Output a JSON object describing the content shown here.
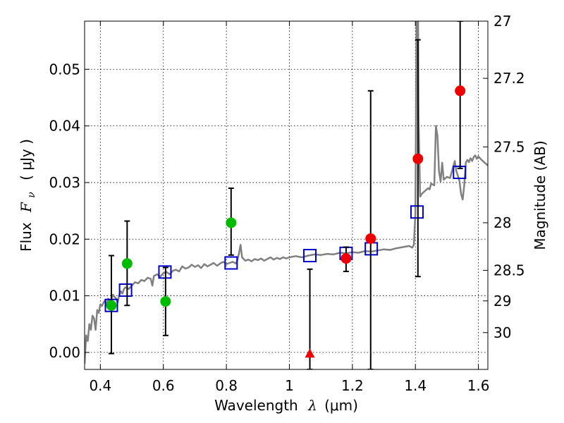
{
  "chart_data": {
    "type": "scatter",
    "xlabel_prefix": "Wavelength",
    "xlabel_symbol": "λ",
    "xlabel_unit": "(μm)",
    "ylabel_prefix": "Flux",
    "ylabel_symbol": "F",
    "ylabel_subscript": "ν",
    "ylabel_unit": "( μJy )",
    "y2label": "Magnitude (AB)",
    "xlim": [
      0.35,
      1.63
    ],
    "ylim": [
      -0.003,
      0.0585
    ],
    "grid": true,
    "x_ticks": [
      {
        "value": 0.4,
        "label": "0.4"
      },
      {
        "value": 0.6,
        "label": "0.6"
      },
      {
        "value": 0.8,
        "label": "0.8"
      },
      {
        "value": 1.0,
        "label": "1"
      },
      {
        "value": 1.2,
        "label": "1.2"
      },
      {
        "value": 1.4,
        "label": "1.4"
      },
      {
        "value": 1.6,
        "label": "1.6"
      }
    ],
    "y_ticks": [
      {
        "value": 0.0,
        "label": "0.00"
      },
      {
        "value": 0.01,
        "label": "0.01"
      },
      {
        "value": 0.02,
        "label": "0.02"
      },
      {
        "value": 0.03,
        "label": "0.03"
      },
      {
        "value": 0.04,
        "label": "0.04"
      },
      {
        "value": 0.05,
        "label": "0.05"
      }
    ],
    "y2_ticks": [
      {
        "flux": 0.0585,
        "label": "27"
      },
      {
        "flux": 0.0484,
        "label": "27.2"
      },
      {
        "flux": 0.0363,
        "label": "27.5"
      },
      {
        "flux": 0.0229,
        "label": "28"
      },
      {
        "flux": 0.0145,
        "label": "28.5"
      },
      {
        "flux": 0.0091,
        "label": "29"
      },
      {
        "flux": 0.0035,
        "label": "30"
      }
    ],
    "series": [
      {
        "kind": "model_spectrum",
        "color": "#808080",
        "points": [
          [
            0.35,
            -0.002
          ],
          [
            0.355,
            0.003
          ],
          [
            0.36,
            0.002
          ],
          [
            0.365,
            0.005
          ],
          [
            0.37,
            0.004
          ],
          [
            0.375,
            0.0065
          ],
          [
            0.38,
            0.006
          ],
          [
            0.385,
            0.004
          ],
          [
            0.39,
            0.0075
          ],
          [
            0.395,
            0.007
          ],
          [
            0.4,
            0.0085
          ],
          [
            0.405,
            0.0082
          ],
          [
            0.41,
            0.0088
          ],
          [
            0.415,
            0.0092
          ],
          [
            0.42,
            0.0084
          ],
          [
            0.425,
            0.0095
          ],
          [
            0.43,
            0.009
          ],
          [
            0.435,
            0.0094
          ],
          [
            0.44,
            0.0102
          ],
          [
            0.445,
            0.0098
          ],
          [
            0.45,
            0.0095
          ],
          [
            0.455,
            0.0088
          ],
          [
            0.46,
            0.0102
          ],
          [
            0.465,
            0.0108
          ],
          [
            0.47,
            0.0104
          ],
          [
            0.475,
            0.0112
          ],
          [
            0.48,
            0.0115
          ],
          [
            0.49,
            0.0112
          ],
          [
            0.5,
            0.0118
          ],
          [
            0.51,
            0.0124
          ],
          [
            0.52,
            0.0122
          ],
          [
            0.53,
            0.0128
          ],
          [
            0.54,
            0.0126
          ],
          [
            0.55,
            0.0132
          ],
          [
            0.56,
            0.013
          ],
          [
            0.565,
            0.0118
          ],
          [
            0.57,
            0.0135
          ],
          [
            0.58,
            0.0138
          ],
          [
            0.59,
            0.0134
          ],
          [
            0.6,
            0.014
          ],
          [
            0.61,
            0.0142
          ],
          [
            0.62,
            0.0138
          ],
          [
            0.63,
            0.0144
          ],
          [
            0.64,
            0.0146
          ],
          [
            0.65,
            0.0143
          ],
          [
            0.66,
            0.0152
          ],
          [
            0.67,
            0.0148
          ],
          [
            0.68,
            0.015
          ],
          [
            0.69,
            0.0155
          ],
          [
            0.7,
            0.0151
          ],
          [
            0.71,
            0.0154
          ],
          [
            0.72,
            0.0149
          ],
          [
            0.73,
            0.0156
          ],
          [
            0.74,
            0.0152
          ],
          [
            0.75,
            0.0155
          ],
          [
            0.76,
            0.0158
          ],
          [
            0.77,
            0.0153
          ],
          [
            0.78,
            0.0157
          ],
          [
            0.79,
            0.016
          ],
          [
            0.8,
            0.0156
          ],
          [
            0.81,
            0.0158
          ],
          [
            0.82,
            0.016
          ],
          [
            0.83,
            0.0157
          ],
          [
            0.835,
            0.0163
          ],
          [
            0.84,
            0.0175
          ],
          [
            0.845,
            0.019
          ],
          [
            0.85,
            0.0168
          ],
          [
            0.86,
            0.0162
          ],
          [
            0.87,
            0.0164
          ],
          [
            0.88,
            0.0161
          ],
          [
            0.89,
            0.0165
          ],
          [
            0.9,
            0.0163
          ],
          [
            0.91,
            0.0166
          ],
          [
            0.92,
            0.0162
          ],
          [
            0.93,
            0.0165
          ],
          [
            0.94,
            0.0168
          ],
          [
            0.95,
            0.0164
          ],
          [
            0.96,
            0.0167
          ],
          [
            0.97,
            0.0165
          ],
          [
            0.98,
            0.0168
          ],
          [
            0.99,
            0.0166
          ],
          [
            1.0,
            0.0168
          ],
          [
            1.02,
            0.017
          ],
          [
            1.04,
            0.0168
          ],
          [
            1.06,
            0.0171
          ],
          [
            1.08,
            0.0173
          ],
          [
            1.1,
            0.0172
          ],
          [
            1.12,
            0.0174
          ],
          [
            1.14,
            0.0173
          ],
          [
            1.16,
            0.0176
          ],
          [
            1.18,
            0.0175
          ],
          [
            1.2,
            0.0177
          ],
          [
            1.22,
            0.0176
          ],
          [
            1.24,
            0.0179
          ],
          [
            1.26,
            0.0178
          ],
          [
            1.28,
            0.018
          ],
          [
            1.3,
            0.0182
          ],
          [
            1.32,
            0.0181
          ],
          [
            1.34,
            0.0184
          ],
          [
            1.36,
            0.0186
          ],
          [
            1.38,
            0.0188
          ],
          [
            1.39,
            0.0185
          ],
          [
            1.395,
            0.019
          ],
          [
            1.4,
            0.0245
          ],
          [
            1.402,
            0.042
          ],
          [
            1.404,
            0.065
          ],
          [
            1.408,
            0.065
          ],
          [
            1.41,
            0.042
          ],
          [
            1.415,
            0.0275
          ],
          [
            1.42,
            0.028
          ],
          [
            1.43,
            0.0285
          ],
          [
            1.44,
            0.029
          ],
          [
            1.445,
            0.0288
          ],
          [
            1.45,
            0.0298
          ],
          [
            1.46,
            0.0295
          ],
          [
            1.465,
            0.04
          ],
          [
            1.47,
            0.0382
          ],
          [
            1.475,
            0.032
          ],
          [
            1.48,
            0.0302
          ],
          [
            1.485,
            0.0335
          ],
          [
            1.49,
            0.0305
          ],
          [
            1.5,
            0.031
          ],
          [
            1.51,
            0.0308
          ],
          [
            1.52,
            0.0328
          ],
          [
            1.525,
            0.0338
          ],
          [
            1.53,
            0.032
          ],
          [
            1.535,
            0.0312
          ],
          [
            1.54,
            0.0302
          ],
          [
            1.545,
            0.028
          ],
          [
            1.55,
            0.027
          ],
          [
            1.555,
            0.0295
          ],
          [
            1.56,
            0.0335
          ],
          [
            1.565,
            0.034
          ],
          [
            1.57,
            0.0336
          ],
          [
            1.575,
            0.0343
          ],
          [
            1.58,
            0.0338
          ],
          [
            1.585,
            0.0345
          ],
          [
            1.59,
            0.0348
          ],
          [
            1.595,
            0.0342
          ],
          [
            1.6,
            0.0346
          ],
          [
            1.61,
            0.034
          ],
          [
            1.62,
            0.0335
          ],
          [
            1.63,
            0.033
          ]
        ]
      },
      {
        "kind": "model_photometry",
        "marker": "open-square",
        "color": "#0000cc",
        "points": [
          [
            0.435,
            0.0083
          ],
          [
            0.48,
            0.011
          ],
          [
            0.605,
            0.0142
          ],
          [
            0.815,
            0.0158
          ],
          [
            1.065,
            0.0171
          ],
          [
            1.18,
            0.0175
          ],
          [
            1.26,
            0.0183
          ],
          [
            1.405,
            0.0248
          ],
          [
            1.54,
            0.0318
          ]
        ]
      },
      {
        "kind": "errorbars",
        "color": "#000000",
        "bars": [
          {
            "x": 0.435,
            "lo": -0.0002,
            "hi": 0.0171
          },
          {
            "x": 0.485,
            "lo": 0.0083,
            "hi": 0.0232
          },
          {
            "x": 0.607,
            "lo": 0.003,
            "hi": 0.015
          },
          {
            "x": 0.815,
            "lo": 0.0172,
            "hi": 0.029
          },
          {
            "x": 1.065,
            "lo": -0.003,
            "hi": 0.0147
          },
          {
            "x": 1.18,
            "lo": 0.0143,
            "hi": 0.0186
          },
          {
            "x": 1.258,
            "lo": -0.003,
            "hi": 0.0462
          },
          {
            "x": 1.408,
            "lo": 0.0134,
            "hi": 0.0552
          },
          {
            "x": 1.542,
            "lo": 0.0325,
            "hi": 0.0585
          }
        ]
      },
      {
        "kind": "observed_optical",
        "marker": "filled-circle",
        "color": "#00bb00",
        "points": [
          [
            0.435,
            0.0083
          ],
          [
            0.485,
            0.0157
          ],
          [
            0.607,
            0.009
          ],
          [
            0.815,
            0.0229
          ]
        ]
      },
      {
        "kind": "observed_nir",
        "marker": "filled-circle",
        "color": "#ee0000",
        "points": [
          [
            1.18,
            0.0166
          ],
          [
            1.258,
            0.0201
          ],
          [
            1.408,
            0.0342
          ],
          [
            1.542,
            0.0462
          ]
        ]
      },
      {
        "kind": "upper_limit",
        "marker": "filled-triangle",
        "color": "#ee0000",
        "points": [
          [
            1.065,
            -0.0003
          ]
        ]
      }
    ]
  }
}
